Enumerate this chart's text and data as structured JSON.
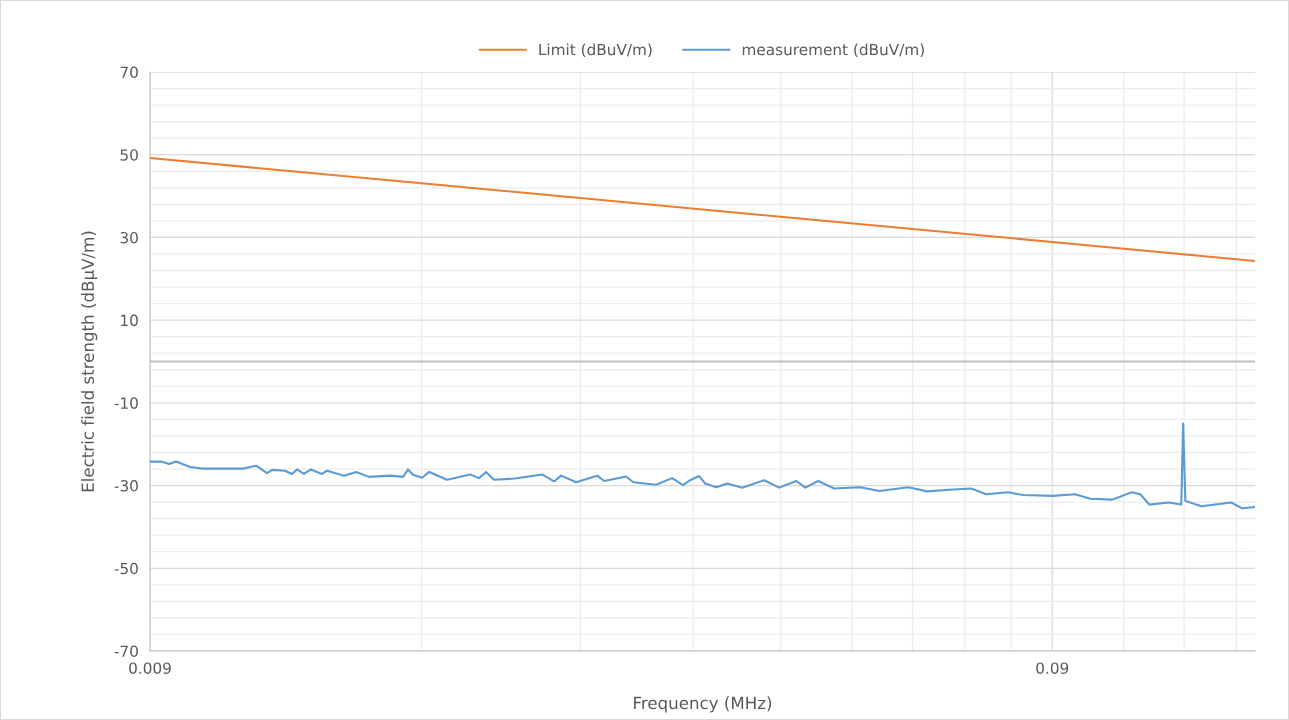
{
  "chart_data": {
    "type": "line",
    "xlabel": "Frequency (MHz)",
    "ylabel": "Electric field strength (dBμV/m)",
    "log": "x",
    "xlim": [
      0.009,
      0.151
    ],
    "xticks": [
      0.009,
      {
        "value": 0.018,
        "label": null
      },
      {
        "value": 0.027,
        "label": null
      },
      {
        "value": 0.036,
        "label": null
      },
      {
        "value": 0.045,
        "label": null
      },
      {
        "value": 0.054,
        "label": null
      },
      {
        "value": 0.063,
        "label": null
      },
      {
        "value": 0.072,
        "label": null
      },
      {
        "value": 0.081,
        "label": null
      },
      0.09,
      {
        "value": 0.108,
        "label": null
      },
      {
        "value": 0.126,
        "label": null
      },
      {
        "value": 0.144,
        "label": null
      }
    ],
    "ylim": [
      -70,
      70
    ],
    "yticks": [
      -70,
      {
        "value": -66,
        "label": null
      },
      {
        "value": -62,
        "label": null
      },
      {
        "value": -58,
        "label": null
      },
      {
        "value": -54,
        "label": null
      },
      -50,
      {
        "value": -46,
        "label": null
      },
      {
        "value": -42,
        "label": null
      },
      {
        "value": -38,
        "label": null
      },
      {
        "value": -34,
        "label": null
      },
      -30,
      {
        "value": -26,
        "label": null
      },
      {
        "value": -22,
        "label": null
      },
      {
        "value": -18,
        "label": null
      },
      {
        "value": -14,
        "label": null
      },
      -10,
      {
        "value": -6,
        "label": null
      },
      {
        "value": -2,
        "label": null
      },
      {
        "value": 2,
        "label": null
      },
      {
        "value": 6,
        "label": null
      },
      10,
      {
        "value": 14,
        "label": null
      },
      {
        "value": 18,
        "label": null
      },
      {
        "value": 22,
        "label": null
      },
      {
        "value": 26,
        "label": null
      },
      30,
      {
        "value": 34,
        "label": null
      },
      {
        "value": 38,
        "label": null
      },
      {
        "value": 42,
        "label": null
      },
      {
        "value": 46,
        "label": null
      },
      50,
      {
        "value": 54,
        "label": null
      },
      {
        "value": 58,
        "label": null
      },
      {
        "value": 62,
        "label": null
      },
      {
        "value": 66,
        "label": null
      },
      70
    ],
    "grid": true,
    "legend": "top",
    "ref_lines": [
      {
        "axis": "y",
        "value": 0,
        "color": "#bfbfbf"
      }
    ],
    "series": [
      {
        "name": "Limit (dBuV/m)",
        "color": "#ed7d31",
        "x": [
          0.009,
          0.018,
          0.045,
          0.09,
          0.151
        ],
        "values": [
          49.2,
          43.1,
          35.0,
          28.9,
          24.3
        ]
      },
      {
        "name": "measurement (dBuV/m)",
        "color": "#5b9bd5",
        "x": [
          0.00902,
          0.00926,
          0.00945,
          0.00962,
          0.00997,
          0.01029,
          0.01141,
          0.0118,
          0.01213,
          0.01229,
          0.0127,
          0.01293,
          0.0131,
          0.01333,
          0.01357,
          0.01396,
          0.01414,
          0.01477,
          0.01523,
          0.01574,
          0.01661,
          0.01717,
          0.01739,
          0.01761,
          0.01802,
          0.01835,
          0.01921,
          0.02037,
          0.02084,
          0.02122,
          0.02165,
          0.02285,
          0.02448,
          0.02524,
          0.0257,
          0.0267,
          0.02818,
          0.02868,
          0.03034,
          0.03089,
          0.03275,
          0.03411,
          0.03508,
          0.03572,
          0.03655,
          0.03712,
          0.03818,
          0.03927,
          0.0408,
          0.04315,
          0.04483,
          0.04683,
          0.04792,
          0.04953,
          0.05159,
          0.05514,
          0.05788,
          0.06232,
          0.06541,
          0.06919,
          0.07319,
          0.07604,
          0.08043,
          0.08357,
          0.09023,
          0.0954,
          0.09918,
          0.1049,
          0.1102,
          0.1127,
          0.1153,
          0.1211,
          0.1251,
          0.1257,
          0.1264,
          0.1317,
          0.1421,
          0.1462,
          0.151
        ],
        "values": [
          -24.2,
          -24.2,
          -24.8,
          -24.2,
          -25.5,
          -25.9,
          -25.9,
          -25.2,
          -27.0,
          -26.2,
          -26.4,
          -27.2,
          -26.1,
          -27.2,
          -26.1,
          -27.2,
          -26.4,
          -27.6,
          -26.7,
          -27.9,
          -27.6,
          -27.9,
          -26.1,
          -27.4,
          -28.1,
          -26.7,
          -28.6,
          -27.3,
          -28.2,
          -26.7,
          -28.6,
          -28.3,
          -27.3,
          -29.0,
          -27.6,
          -29.2,
          -27.6,
          -28.9,
          -27.8,
          -29.2,
          -29.8,
          -28.2,
          -29.9,
          -28.7,
          -27.7,
          -29.5,
          -30.4,
          -29.5,
          -30.5,
          -28.7,
          -30.5,
          -28.9,
          -30.5,
          -28.9,
          -30.7,
          -30.4,
          -31.3,
          -30.4,
          -31.4,
          -31.0,
          -30.7,
          -32.1,
          -31.6,
          -32.3,
          -32.5,
          -32.1,
          -33.2,
          -33.4,
          -31.6,
          -32.1,
          -34.6,
          -34.1,
          -34.6,
          -15.0,
          -33.7,
          -35.0,
          -34.1,
          -35.5,
          -35.2
        ]
      }
    ]
  }
}
